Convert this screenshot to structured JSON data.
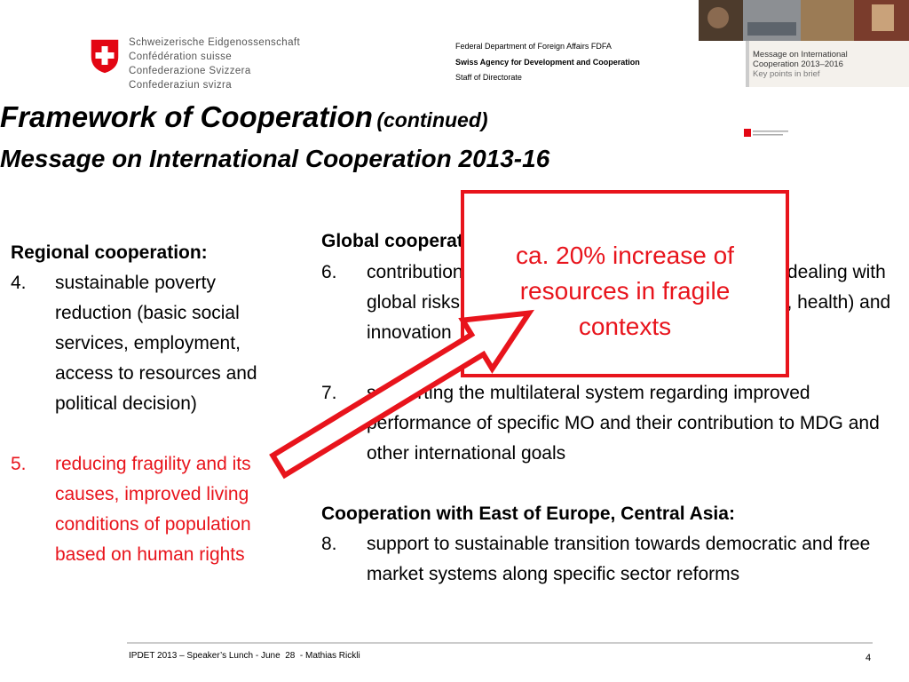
{
  "header": {
    "confederation": [
      "Schweizerische Eidgenossenschaft",
      "Confédération suisse",
      "Confederazione Svizzera",
      "Confederaziun svizra"
    ],
    "department": "Federal Department of Foreign Affairs FDFA",
    "agency": "Swiss Agency for Development and Cooperation",
    "unit": "Staff of Directorate",
    "cover": [
      "Message on International",
      "Cooperation 2013–2016",
      "Key points in brief"
    ]
  },
  "title": {
    "main": "Framework of Cooperation",
    "suffix": "(continued)",
    "subtitle": "Message on International Cooperation 2013-16"
  },
  "regional": {
    "heading": "Regional cooperation:",
    "items": [
      {
        "number": "4.",
        "text": "sustainable poverty reduction (basic social services, employment, access to resources and political decision)"
      },
      {
        "number": "5.",
        "text": "reducing fragility and its causes, improved living conditions of population based on human rights"
      }
    ]
  },
  "global": {
    "heading": "Global cooperation:",
    "items": [
      {
        "number": "6.",
        "text": "contribution to global solutions and frameworks for dealing with global risks (climate, water, food security, migration, health) and innovation"
      },
      {
        "number": "7.",
        "text": "supporting the multilateral system regarding improved performance of specific MO and their contribution to MDG and other international goals"
      }
    ]
  },
  "east": {
    "heading": "Cooperation with East of Europe, Central Asia:",
    "items": [
      {
        "number": "8.",
        "text": "support to sustainable transition towards democratic and free market systems along specific sector reforms"
      }
    ]
  },
  "callout": "ca. 20% increase of resources in fragile contexts",
  "footer": {
    "text": "IPDET 2013 – Speaker’s Lunch - June  28  - Mathias Rickli",
    "page": "4"
  }
}
